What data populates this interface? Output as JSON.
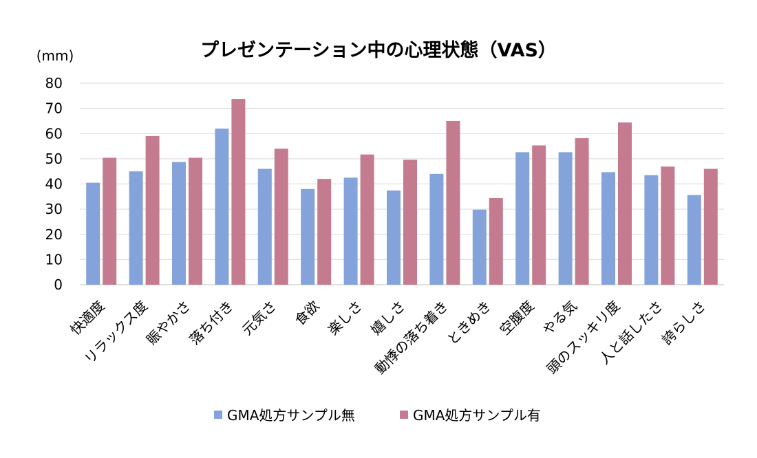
{
  "chart_data": {
    "type": "bar",
    "title": "プレゼンテーション中の心理状態（VAS）",
    "ylabel": "(mm)",
    "xlabel": "",
    "ylim": [
      0,
      80
    ],
    "yticks": [
      0,
      10,
      20,
      30,
      40,
      50,
      60,
      70,
      80
    ],
    "grid": true,
    "legend_position": "bottom",
    "categories": [
      "快適度",
      "リラックス度",
      "賑やかさ",
      "落ち付き",
      "元気さ",
      "食欲",
      "楽しさ",
      "嬉しさ",
      "動悸の落ち着き",
      "ときめき",
      "空腹度",
      "やる気",
      "頭のスッキリ度",
      "人と話したさ",
      "誇らしさ"
    ],
    "series": [
      {
        "name": "GMA処方サンプル無",
        "color": "#84a3db",
        "values": [
          40.5,
          45,
          48.7,
          62,
          46,
          38,
          42.5,
          37.4,
          44,
          29.8,
          52.6,
          52.6,
          44.7,
          43.5,
          35.6
        ]
      },
      {
        "name": "GMA処方サンプル有",
        "color": "#c47b90",
        "values": [
          50.4,
          59,
          50.4,
          73.7,
          54,
          42,
          51.7,
          49.6,
          65,
          34.4,
          55.3,
          58.2,
          64.4,
          46.9,
          46
        ]
      }
    ]
  }
}
